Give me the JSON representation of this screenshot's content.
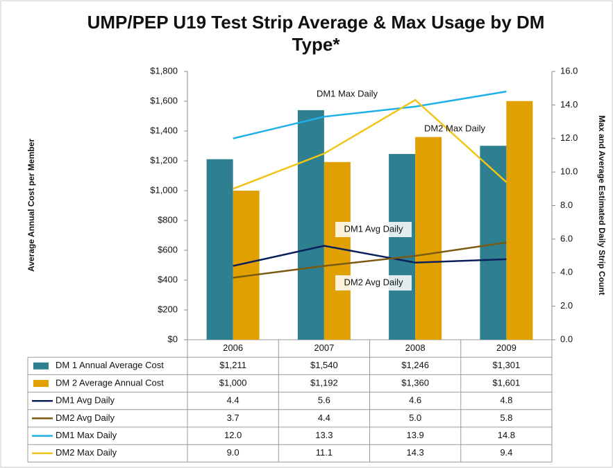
{
  "chart_data": {
    "type": "bar",
    "title": "UMP/PEP U19 Test Strip Average & Max Usage by DM Type*",
    "y_label": "Average Annual Cost per  Member",
    "y2_label": "Max and Average Estimated Daily Strip Count",
    "categories": [
      "2006",
      "2007",
      "2008",
      "2009"
    ],
    "ylim": [
      0,
      1800
    ],
    "yticks": [
      {
        "value": 0,
        "label": "$0"
      },
      {
        "value": 200,
        "label": "$200"
      },
      {
        "value": 400,
        "label": "$400"
      },
      {
        "value": 600,
        "label": "$600"
      },
      {
        "value": 800,
        "label": "$800"
      },
      {
        "value": 1000,
        "label": "$1,000"
      },
      {
        "value": 1200,
        "label": "$1,200"
      },
      {
        "value": 1400,
        "label": "$1,400"
      },
      {
        "value": 1600,
        "label": "$1,600"
      },
      {
        "value": 1800,
        "label": "$1,800"
      }
    ],
    "y2lim": [
      0,
      16
    ],
    "y2ticks": [
      {
        "value": 0,
        "label": "0.0"
      },
      {
        "value": 2,
        "label": "2.0"
      },
      {
        "value": 4,
        "label": "4.0"
      },
      {
        "value": 6,
        "label": "6.0"
      },
      {
        "value": 8,
        "label": "8.0"
      },
      {
        "value": 10,
        "label": "10.0"
      },
      {
        "value": 12,
        "label": "12.0"
      },
      {
        "value": 14,
        "label": "14.0"
      },
      {
        "value": 16,
        "label": "16.0"
      }
    ],
    "series": [
      {
        "name": "DM 1 Annual Average Cost",
        "type": "bar",
        "color": "#2e7f8f",
        "values": [
          1211,
          1540,
          1246,
          1301
        ],
        "value_labels": [
          "$1,211",
          "$1,540",
          "$1,246",
          "$1,301"
        ]
      },
      {
        "name": "DM 2 Average Annual Cost",
        "type": "bar",
        "color": "#e0a100",
        "values": [
          1000,
          1192,
          1360,
          1601
        ],
        "value_labels": [
          "$1,000",
          "$1,192",
          "$1,360",
          "$1,601"
        ]
      },
      {
        "name": "DM1 Avg Daily",
        "type": "line",
        "axis": "y2",
        "color": "#0a1f5c",
        "values": [
          4.4,
          5.6,
          4.6,
          4.8
        ],
        "value_labels": [
          "4.4",
          "5.6",
          "4.6",
          "4.8"
        ]
      },
      {
        "name": "DM2 Avg Daily",
        "type": "line",
        "axis": "y2",
        "color": "#7a5a10",
        "values": [
          3.7,
          4.4,
          5.0,
          5.8
        ],
        "value_labels": [
          "3.7",
          "4.4",
          "5.0",
          "5.8"
        ]
      },
      {
        "name": "DM1 Max Daily",
        "type": "line",
        "axis": "y2",
        "color": "#1eb0e6",
        "values": [
          12.0,
          13.3,
          13.9,
          14.8
        ],
        "value_labels": [
          "12.0",
          "13.3",
          "13.9",
          "14.8"
        ]
      },
      {
        "name": "DM2 Max Daily",
        "type": "line",
        "axis": "y2",
        "color": "#f2c418",
        "values": [
          9.0,
          11.1,
          14.3,
          9.4
        ],
        "value_labels": [
          "9.0",
          "11.1",
          "14.3",
          "9.4"
        ]
      }
    ]
  }
}
